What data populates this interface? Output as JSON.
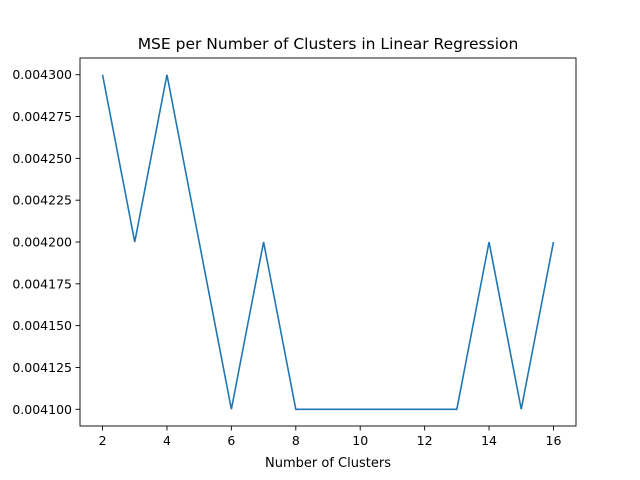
{
  "chart_data": {
    "type": "line",
    "title": "MSE per Number of Clusters in Linear Regression",
    "xlabel": "Number of Clusters",
    "ylabel": "",
    "x": [
      2,
      3,
      4,
      5,
      6,
      7,
      8,
      9,
      10,
      11,
      12,
      13,
      14,
      15,
      16
    ],
    "series": [
      {
        "values": [
          0.0043,
          0.0042,
          0.0043,
          0.0042,
          0.0041,
          0.0042,
          0.0041,
          0.0041,
          0.0041,
          0.0041,
          0.0041,
          0.0041,
          0.0042,
          0.0041,
          0.0042
        ],
        "color": "#1f77b4"
      }
    ],
    "xlim": [
      1.3,
      16.7
    ],
    "ylim": [
      0.00409,
      0.00431
    ],
    "xticks": [
      2,
      4,
      6,
      8,
      10,
      12,
      14,
      16
    ],
    "xtick_labels": [
      "2",
      "4",
      "6",
      "8",
      "10",
      "12",
      "14",
      "16"
    ],
    "yticks": [
      0.0041,
      0.004125,
      0.00415,
      0.004175,
      0.0042,
      0.004225,
      0.00425,
      0.004275,
      0.0043
    ],
    "ytick_labels": [
      "0.004100",
      "0.004125",
      "0.004150",
      "0.004175",
      "0.004200",
      "0.004225",
      "0.004250",
      "0.004275",
      "0.004300"
    ],
    "grid": false,
    "legend": "none"
  }
}
